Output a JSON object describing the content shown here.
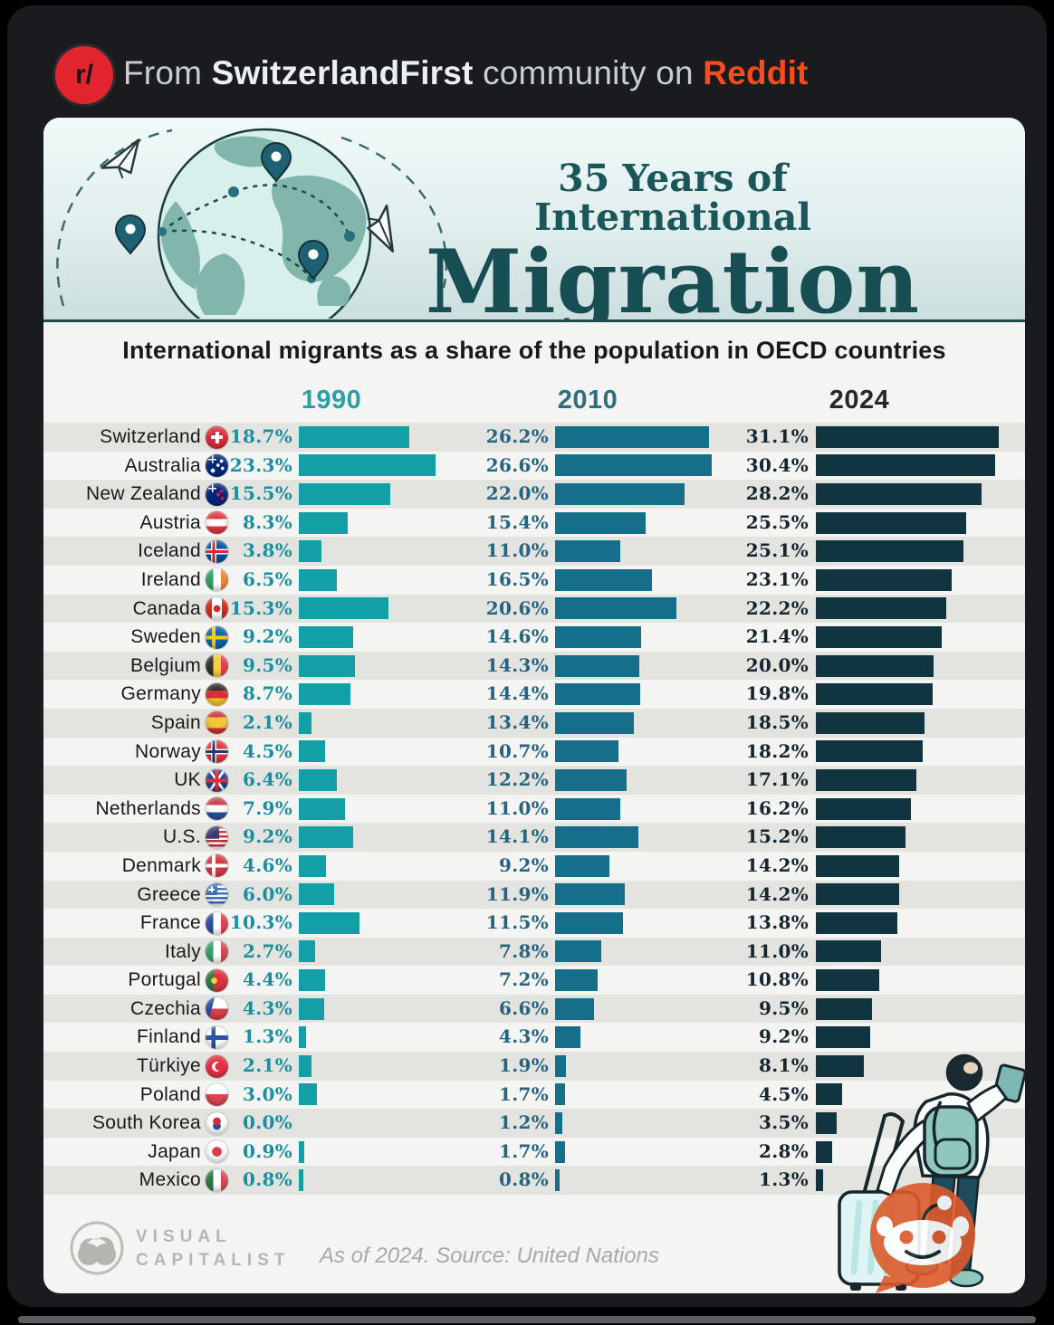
{
  "banner": {
    "logo": "r/",
    "text_prefix": "From",
    "community": "SwitzerlandFirst",
    "text_middle": "community on",
    "platform": "Reddit",
    "platform_color": "#ff4a1d"
  },
  "infographic": {
    "title_line1": "35 Years of International",
    "title_line2": "Migration",
    "subtitle": "International migrants as a share of the population in OECD countries",
    "year_colors": [
      "#2aa0a6",
      "#2f6f7d",
      "#20292d"
    ],
    "pct_colors": [
      "#1a8fa0",
      "#27647f",
      "#15262e"
    ],
    "bar_colors": [
      "#12a0a6",
      "#166f8a",
      "#103440"
    ],
    "footer": {
      "brand_line1": "VISUAL",
      "brand_line2": "CAPITALIST",
      "source_note": "As of 2024. Source: United Nations"
    }
  },
  "chart_data": {
    "type": "bar",
    "orientation": "horizontal",
    "title": "35 Years of International Migration",
    "subtitle": "International migrants as a share of the population in OECD countries",
    "unit": "percent of population",
    "value_label_format": "0.0%",
    "legend_position": "column headers",
    "source": "As of 2024. Source: United Nations",
    "categories": [
      "Switzerland",
      "Australia",
      "New Zealand",
      "Austria",
      "Iceland",
      "Ireland",
      "Canada",
      "Sweden",
      "Belgium",
      "Germany",
      "Spain",
      "Norway",
      "UK",
      "Netherlands",
      "U.S.",
      "Denmark",
      "Greece",
      "France",
      "Italy",
      "Portugal",
      "Czechia",
      "Finland",
      "Türkiye",
      "Poland",
      "South Korea",
      "Japan",
      "Mexico"
    ],
    "series": [
      {
        "name": "1990",
        "values": [
          18.7,
          23.3,
          15.5,
          8.3,
          3.8,
          6.5,
          15.3,
          9.2,
          9.5,
          8.7,
          2.1,
          4.5,
          6.4,
          7.9,
          9.2,
          4.6,
          6.0,
          10.3,
          2.7,
          4.4,
          4.3,
          1.3,
          2.1,
          3.0,
          0.0,
          0.9,
          0.8
        ]
      },
      {
        "name": "2010",
        "values": [
          26.2,
          26.6,
          22.0,
          15.4,
          11.0,
          16.5,
          20.6,
          14.6,
          14.3,
          14.4,
          13.4,
          10.7,
          12.2,
          11.0,
          14.1,
          9.2,
          11.9,
          11.5,
          7.8,
          7.2,
          6.6,
          4.3,
          1.9,
          1.7,
          1.2,
          1.7,
          0.8
        ]
      },
      {
        "name": "2024",
        "values": [
          31.1,
          30.4,
          28.2,
          25.5,
          25.1,
          23.1,
          22.2,
          21.4,
          20.0,
          19.8,
          18.5,
          18.2,
          17.1,
          16.2,
          15.2,
          14.2,
          14.2,
          13.8,
          11.0,
          10.8,
          9.5,
          9.2,
          8.1,
          4.5,
          3.5,
          2.8,
          1.3
        ]
      }
    ]
  },
  "flags": [
    {
      "id": "switzerland-flag",
      "css": "linear-gradient(#fff,#fff) 50% 50%/13px 4px no-repeat, linear-gradient(#fff,#fff) 50% 50%/4px 13px no-repeat #da2c38"
    },
    {
      "id": "australia-flag",
      "css": "linear-gradient(#fff,#fff) 3px 5px/9px 1.5px no-repeat, linear-gradient(#fff,#fff) 6.5px 1px/1.5px 9px no-repeat, radial-gradient(2px at 70% 30%, #fff 90%, transparent), radial-gradient(2px at 75% 62%, #fff 90%, transparent), radial-gradient(2px at 55% 48%, #fff 90%, transparent), radial-gradient(2.5px at 32% 72%, #fff 90%, transparent) #00267c"
    },
    {
      "id": "new-zealand-flag",
      "css": "linear-gradient(#fff,#fff) 3px 5px/9px 1.5px no-repeat, linear-gradient(#fff,#fff) 6.5px 1px/1.5px 9px no-repeat, radial-gradient(2px at 70% 35%, #cf2234 90%, transparent), radial-gradient(2px at 74% 66%, #cf2234 90%, transparent), radial-gradient(2px at 56% 50%, #cf2234 90%, transparent) #00267c"
    },
    {
      "id": "austria-flag",
      "css": "linear-gradient(#e03a42 34%, #fff 34% 66%, #e03a42 66%)"
    },
    {
      "id": "iceland-flag",
      "css": "linear-gradient(90deg, transparent 30%, #d72837 30% 42%, transparent 42%), linear-gradient(transparent 44%, #d72837 44% 56%, transparent 56%), linear-gradient(90deg, transparent 24%, #fff 24% 48%, transparent 48%), linear-gradient(transparent 38%, #fff 38% 62%, transparent 62%) #0451a3"
    },
    {
      "id": "ireland-flag",
      "css": "linear-gradient(90deg, #35a06c 33%, #fff 33% 67%, #f0883e 67%)"
    },
    {
      "id": "canada-flag",
      "css": "radial-gradient(4px at 50% 50%, #d52b1e 92%, transparent), linear-gradient(90deg, #d52b1e 28%, #fff 28% 72%, #d52b1e 72%)"
    },
    {
      "id": "sweden-flag",
      "css": "linear-gradient(90deg, transparent 28%, #f8c81c 28% 44%, transparent 44%), linear-gradient(transparent 42%, #f8c81c 42% 58%, transparent 58%) #0f63a8"
    },
    {
      "id": "belgium-flag",
      "css": "linear-gradient(90deg, #31302e 33%, #f4d03c 33% 67%, #e8414b 67%)"
    },
    {
      "id": "germany-flag",
      "css": "linear-gradient(#2e2d2b 33%, #d93036 33% 67%, #f3c530 67%)"
    },
    {
      "id": "spain-flag",
      "css": "linear-gradient(#cb3234 26%, #f4c439 26% 74%, #cb3234 74%)"
    },
    {
      "id": "norway-flag",
      "css": "linear-gradient(90deg, transparent 30%, #1d3a70 30% 42%, transparent 42%), linear-gradient(transparent 44%, #1d3a70 44% 56%, transparent 56%), linear-gradient(90deg, transparent 24%, #fff 24% 48%, transparent 48%), linear-gradient(transparent 38%, #fff 38% 62%, transparent 62%) #e33540"
    },
    {
      "id": "uk-flag",
      "css": "linear-gradient(transparent 42%, #d6303c 42% 58%, transparent 58%), linear-gradient(90deg, transparent 42%, #d6303c 42% 58%, transparent 58%), linear-gradient(55deg, transparent 46%, #fff 46% 54%, transparent 54%), linear-gradient(-55deg, transparent 46%, #fff 46% 54%, transparent 54%) #1f3f94"
    },
    {
      "id": "netherlands-flag",
      "css": "linear-gradient(#c8414b 34%, #fff 34% 66%, #2b4f9e 66%)"
    },
    {
      "id": "us-flag",
      "css": "linear-gradient(#3c3b6e, #3c3b6e) 0 0/60% 55% no-repeat, repeating-linear-gradient(#c5303c 0 2.5px, #fff 2.5px 5px)"
    },
    {
      "id": "denmark-flag",
      "css": "linear-gradient(90deg, transparent 28%, #fff 28% 44%, transparent 44%), linear-gradient(transparent 42%, #fff 42% 58%, transparent 58%) #d13c45"
    },
    {
      "id": "greece-flag",
      "css": "linear-gradient(#fff,#fff) 3px 5.5px/7px 2px no-repeat, linear-gradient(#fff,#fff) 5.5px 3px/2px 7px no-repeat, linear-gradient(#3f6fb5, #3f6fb5) 0 0/52% 52% no-repeat, repeating-linear-gradient(#3f6fb5 0 2.5px, #fff 2.5px 5px)"
    },
    {
      "id": "france-flag",
      "css": "linear-gradient(90deg, #2b4f9e 33%, #fff 33% 67%, #e04352 67%)"
    },
    {
      "id": "italy-flag",
      "css": "linear-gradient(90deg, #37a16b 33%, #fff 33% 67%, #d84a53 67%)"
    },
    {
      "id": "portugal-flag",
      "css": "radial-gradient(3.5px at 38% 50%, #f4cf3e 92%, transparent), linear-gradient(90deg, #2f7a43 38%, #dd3440 38%)"
    },
    {
      "id": "czechia-flag",
      "css": "linear-gradient(105deg, #2b4f9e 32%, transparent 32%), linear-gradient(#fff 50%, #d7404a 50%)"
    },
    {
      "id": "finland-flag",
      "css": "linear-gradient(90deg, transparent 26%, #2b55a2 26% 44%, transparent 44%), linear-gradient(transparent 40%, #2b55a2 40% 60%, transparent 60%) #fff"
    },
    {
      "id": "turkiye-flag",
      "css": "radial-gradient(4.5px at 60% 50%, #e23041 96%, transparent), radial-gradient(5.5px at 50% 50%, #fff 96%, transparent) #e23041"
    },
    {
      "id": "poland-flag",
      "css": "linear-gradient(#fff 48%, #de4550 48%)"
    },
    {
      "id": "south-korea-flag",
      "css": "radial-gradient(4.5px at 50% 40%, #cd2e3a 92%, transparent), radial-gradient(4.5px at 50% 60%, #1d4fa1 92%, transparent) #fff"
    },
    {
      "id": "japan-flag",
      "css": "radial-gradient(5.5px at 50% 50%, #d8414b 94%, transparent) #fff"
    },
    {
      "id": "mexico-flag",
      "css": "linear-gradient(90deg, #2f7a43 33%, #fff 33% 67%, #d84a53 67%)"
    }
  ]
}
